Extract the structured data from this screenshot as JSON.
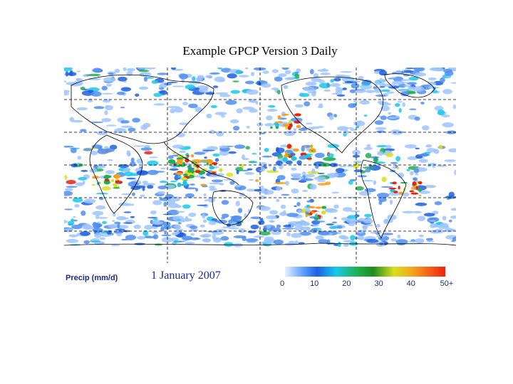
{
  "title": "Example GPCP Version 3 Daily",
  "legend": {
    "label": "Precip (mm/d)",
    "date": "1 January 2007",
    "range": [
      0,
      50
    ],
    "ticks": [
      0,
      10,
      20,
      30,
      40,
      {
        "value": 50,
        "label": "50+"
      }
    ]
  }
}
